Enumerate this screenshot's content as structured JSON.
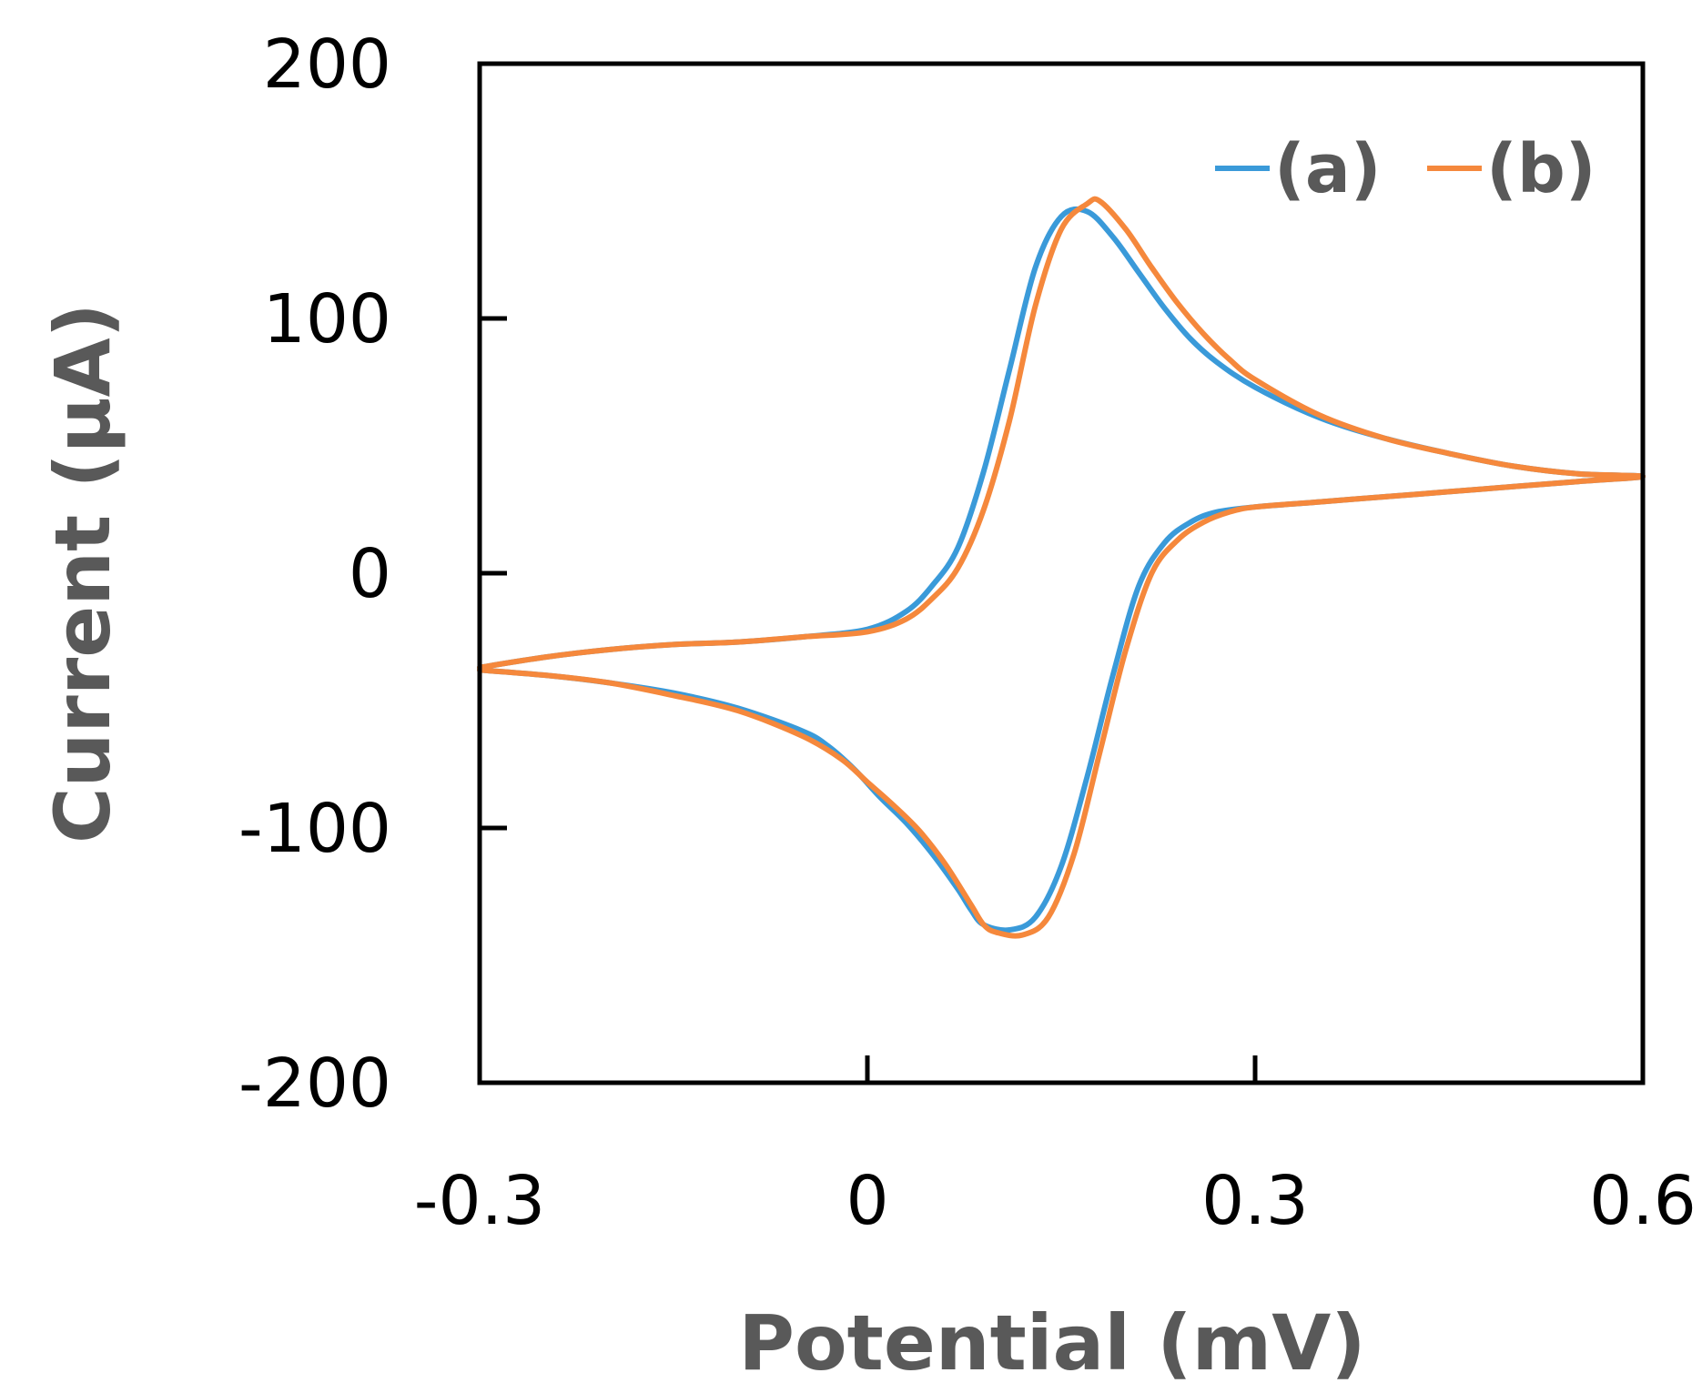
{
  "chart_data": {
    "type": "line",
    "title": "",
    "xlabel": "Potential (mV)",
    "ylabel": "Current (μA)",
    "xlim": [
      -0.3,
      0.6
    ],
    "ylim": [
      -200,
      200
    ],
    "xticks": [
      -0.3,
      0,
      0.3,
      0.6
    ],
    "yticks": [
      -200,
      -100,
      0,
      100,
      200
    ],
    "xtick_labels": [
      "-0.3",
      "0",
      "0.3",
      "0.6"
    ],
    "ytick_labels": [
      "-200",
      "-100",
      "0",
      "100",
      "200"
    ],
    "grid": false,
    "legend_position": "top-right",
    "series": [
      {
        "name": "(a)",
        "color": "#3a9ad9",
        "x": [
          -0.3,
          -0.25,
          -0.2,
          -0.15,
          -0.1,
          -0.05,
          0.0,
          0.03,
          0.05,
          0.07,
          0.09,
          0.11,
          0.13,
          0.15,
          0.17,
          0.19,
          0.21,
          0.23,
          0.25,
          0.27,
          0.3,
          0.35,
          0.4,
          0.45,
          0.5,
          0.55,
          0.6,
          0.55,
          0.5,
          0.45,
          0.4,
          0.35,
          0.3,
          0.27,
          0.25,
          0.23,
          0.21,
          0.19,
          0.17,
          0.15,
          0.13,
          0.11,
          0.09,
          0.08,
          0.07,
          0.05,
          0.03,
          0.01,
          -0.01,
          -0.03,
          -0.05,
          -0.1,
          -0.15,
          -0.2,
          -0.25,
          -0.3
        ],
        "y": [
          -37,
          -33,
          -30,
          -28,
          -27,
          -25,
          -22,
          -15,
          -5,
          10,
          40,
          80,
          120,
          140,
          142,
          132,
          118,
          104,
          92,
          83,
          73,
          61,
          53,
          47,
          42,
          39,
          38,
          36,
          34,
          32,
          30,
          28,
          26,
          24,
          20,
          12,
          -5,
          -40,
          -80,
          -115,
          -135,
          -140,
          -138,
          -132,
          -124,
          -110,
          -98,
          -88,
          -77,
          -68,
          -62,
          -53,
          -47,
          -43,
          -40,
          -38
        ]
      },
      {
        "name": "(b)",
        "color": "#f5883c",
        "x": [
          -0.3,
          -0.25,
          -0.2,
          -0.15,
          -0.1,
          -0.05,
          0.0,
          0.03,
          0.05,
          0.07,
          0.09,
          0.11,
          0.13,
          0.15,
          0.17,
          0.18,
          0.2,
          0.22,
          0.24,
          0.26,
          0.28,
          0.3,
          0.35,
          0.4,
          0.45,
          0.5,
          0.55,
          0.6,
          0.55,
          0.5,
          0.45,
          0.4,
          0.35,
          0.3,
          0.28,
          0.26,
          0.24,
          0.22,
          0.2,
          0.18,
          0.16,
          0.14,
          0.12,
          0.1,
          0.09,
          0.08,
          0.06,
          0.04,
          0.02,
          0.0,
          -0.02,
          -0.05,
          -0.1,
          -0.15,
          -0.2,
          -0.25,
          -0.3
        ],
        "y": [
          -37,
          -33,
          -30,
          -28,
          -27,
          -25,
          -23,
          -18,
          -10,
          2,
          25,
          60,
          105,
          135,
          145,
          146,
          135,
          120,
          106,
          94,
          84,
          76,
          62,
          53,
          47,
          42,
          39,
          38,
          36,
          34,
          32,
          30,
          28,
          26,
          24,
          20,
          13,
          0,
          -30,
          -70,
          -110,
          -135,
          -142,
          -141,
          -138,
          -130,
          -114,
          -101,
          -91,
          -82,
          -73,
          -64,
          -54,
          -48,
          -43,
          -40,
          -38
        ]
      }
    ]
  }
}
